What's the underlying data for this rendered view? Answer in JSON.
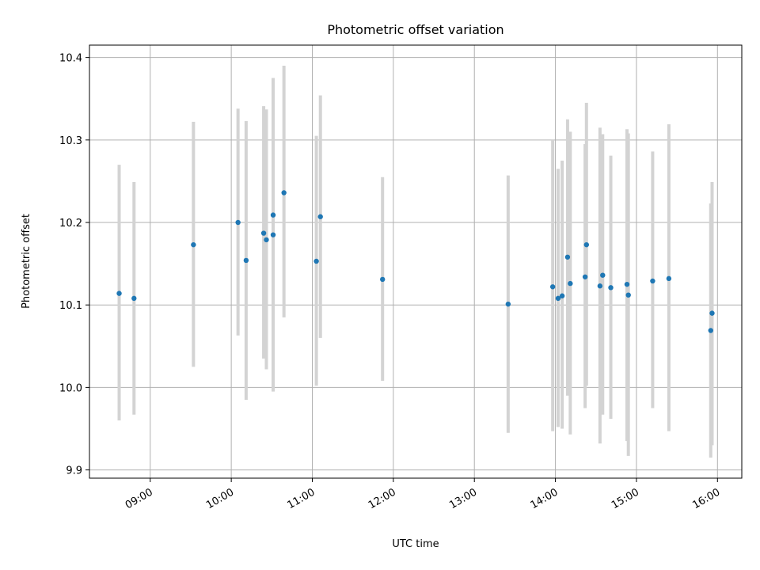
{
  "chart_data": {
    "type": "scatter",
    "title": "Photometric offset variation",
    "xlabel": "UTC time",
    "ylabel": "Photometric offset",
    "xlim": [
      "08:15",
      "16:18"
    ],
    "ylim": [
      9.89,
      10.415
    ],
    "grid": true,
    "x_ticks": [
      "09:00",
      "10:00",
      "11:00",
      "12:00",
      "13:00",
      "14:00",
      "15:00",
      "16:00"
    ],
    "y_ticks": [
      "9.9",
      "10.0",
      "10.1",
      "10.2",
      "10.3",
      "10.4"
    ],
    "colors": {
      "points": "#1f77b4",
      "error_bars": "#d3d3d3",
      "grid": "#b0b0b0"
    },
    "points": [
      {
        "x": "08:37",
        "y": 10.114,
        "ylow": 9.96,
        "yhigh": 10.27
      },
      {
        "x": "08:48",
        "y": 10.108,
        "ylow": 9.967,
        "yhigh": 10.249
      },
      {
        "x": "09:32",
        "y": 10.173,
        "ylow": 10.025,
        "yhigh": 10.322
      },
      {
        "x": "10:05",
        "y": 10.2,
        "ylow": 10.063,
        "yhigh": 10.338
      },
      {
        "x": "10:11",
        "y": 10.154,
        "ylow": 9.985,
        "yhigh": 10.323
      },
      {
        "x": "10:24",
        "y": 10.187,
        "ylow": 10.035,
        "yhigh": 10.341
      },
      {
        "x": "10:26",
        "y": 10.179,
        "ylow": 10.022,
        "yhigh": 10.337
      },
      {
        "x": "10:31",
        "y": 10.185,
        "ylow": 9.995,
        "yhigh": 10.375
      },
      {
        "x": "10:31",
        "y": 10.209,
        "ylow": 10.022,
        "yhigh": 10.375
      },
      {
        "x": "10:39",
        "y": 10.236,
        "ylow": 10.085,
        "yhigh": 10.39
      },
      {
        "x": "11:03",
        "y": 10.153,
        "ylow": 10.002,
        "yhigh": 10.305
      },
      {
        "x": "11:06",
        "y": 10.207,
        "ylow": 10.06,
        "yhigh": 10.354
      },
      {
        "x": "11:52",
        "y": 10.131,
        "ylow": 10.008,
        "yhigh": 10.255
      },
      {
        "x": "13:25",
        "y": 10.101,
        "ylow": 9.945,
        "yhigh": 10.257
      },
      {
        "x": "13:58",
        "y": 10.122,
        "ylow": 9.947,
        "yhigh": 10.3
      },
      {
        "x": "14:02",
        "y": 10.108,
        "ylow": 9.952,
        "yhigh": 10.265
      },
      {
        "x": "14:05",
        "y": 10.111,
        "ylow": 9.95,
        "yhigh": 10.275
      },
      {
        "x": "14:09",
        "y": 10.158,
        "ylow": 9.99,
        "yhigh": 10.325
      },
      {
        "x": "14:11",
        "y": 10.126,
        "ylow": 9.943,
        "yhigh": 10.31
      },
      {
        "x": "14:22",
        "y": 10.134,
        "ylow": 9.975,
        "yhigh": 10.295
      },
      {
        "x": "14:23",
        "y": 10.173,
        "ylow": 10.002,
        "yhigh": 10.345
      },
      {
        "x": "14:33",
        "y": 10.123,
        "ylow": 9.932,
        "yhigh": 10.315
      },
      {
        "x": "14:35",
        "y": 10.136,
        "ylow": 9.967,
        "yhigh": 10.307
      },
      {
        "x": "14:41",
        "y": 10.121,
        "ylow": 9.962,
        "yhigh": 10.281
      },
      {
        "x": "14:53",
        "y": 10.125,
        "ylow": 9.935,
        "yhigh": 10.313
      },
      {
        "x": "14:54",
        "y": 10.112,
        "ylow": 9.917,
        "yhigh": 10.308
      },
      {
        "x": "15:12",
        "y": 10.129,
        "ylow": 9.975,
        "yhigh": 10.286
      },
      {
        "x": "15:24",
        "y": 10.132,
        "ylow": 9.947,
        "yhigh": 10.319
      },
      {
        "x": "15:55",
        "y": 10.069,
        "ylow": 9.915,
        "yhigh": 10.223
      },
      {
        "x": "15:56",
        "y": 10.09,
        "ylow": 9.93,
        "yhigh": 10.249
      }
    ]
  }
}
